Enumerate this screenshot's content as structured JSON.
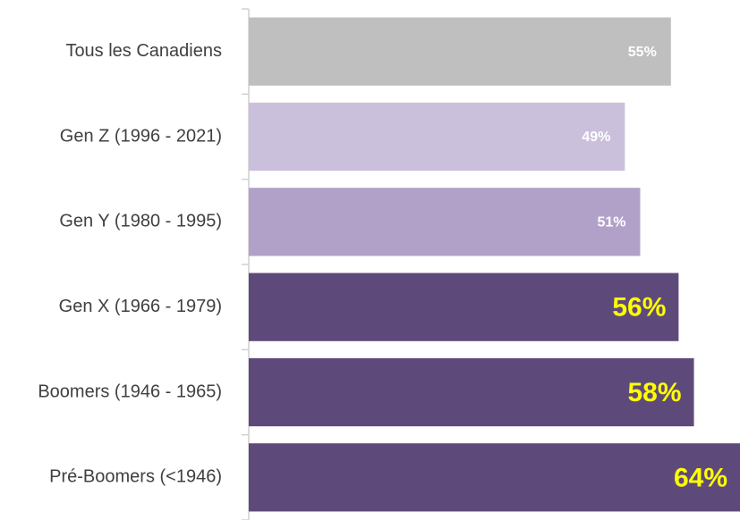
{
  "chart_data": {
    "type": "bar",
    "orientation": "horizontal",
    "categories": [
      "Tous les Canadiens",
      "Gen Z (1996 - 2021)",
      "Gen Y (1980 - 1995)",
      "Gen X (1966 - 1979)",
      "Boomers (1946 - 1965)",
      "Pré-Boomers (<1946)"
    ],
    "values": [
      55,
      49,
      51,
      56,
      58,
      64
    ],
    "value_labels": [
      "55%",
      "49%",
      "51%",
      "56%",
      "58%",
      "64%"
    ],
    "colors": [
      "#bfbfbf",
      "#cbc0dc",
      "#b1a1c8",
      "#5e4a7a",
      "#5e4a7a",
      "#5e4a7a"
    ],
    "label_colors": [
      "#ffffff",
      "#ffffff",
      "#ffffff",
      "#ffff00",
      "#ffff00",
      "#ffff00"
    ],
    "xlim": [
      0,
      64
    ]
  }
}
